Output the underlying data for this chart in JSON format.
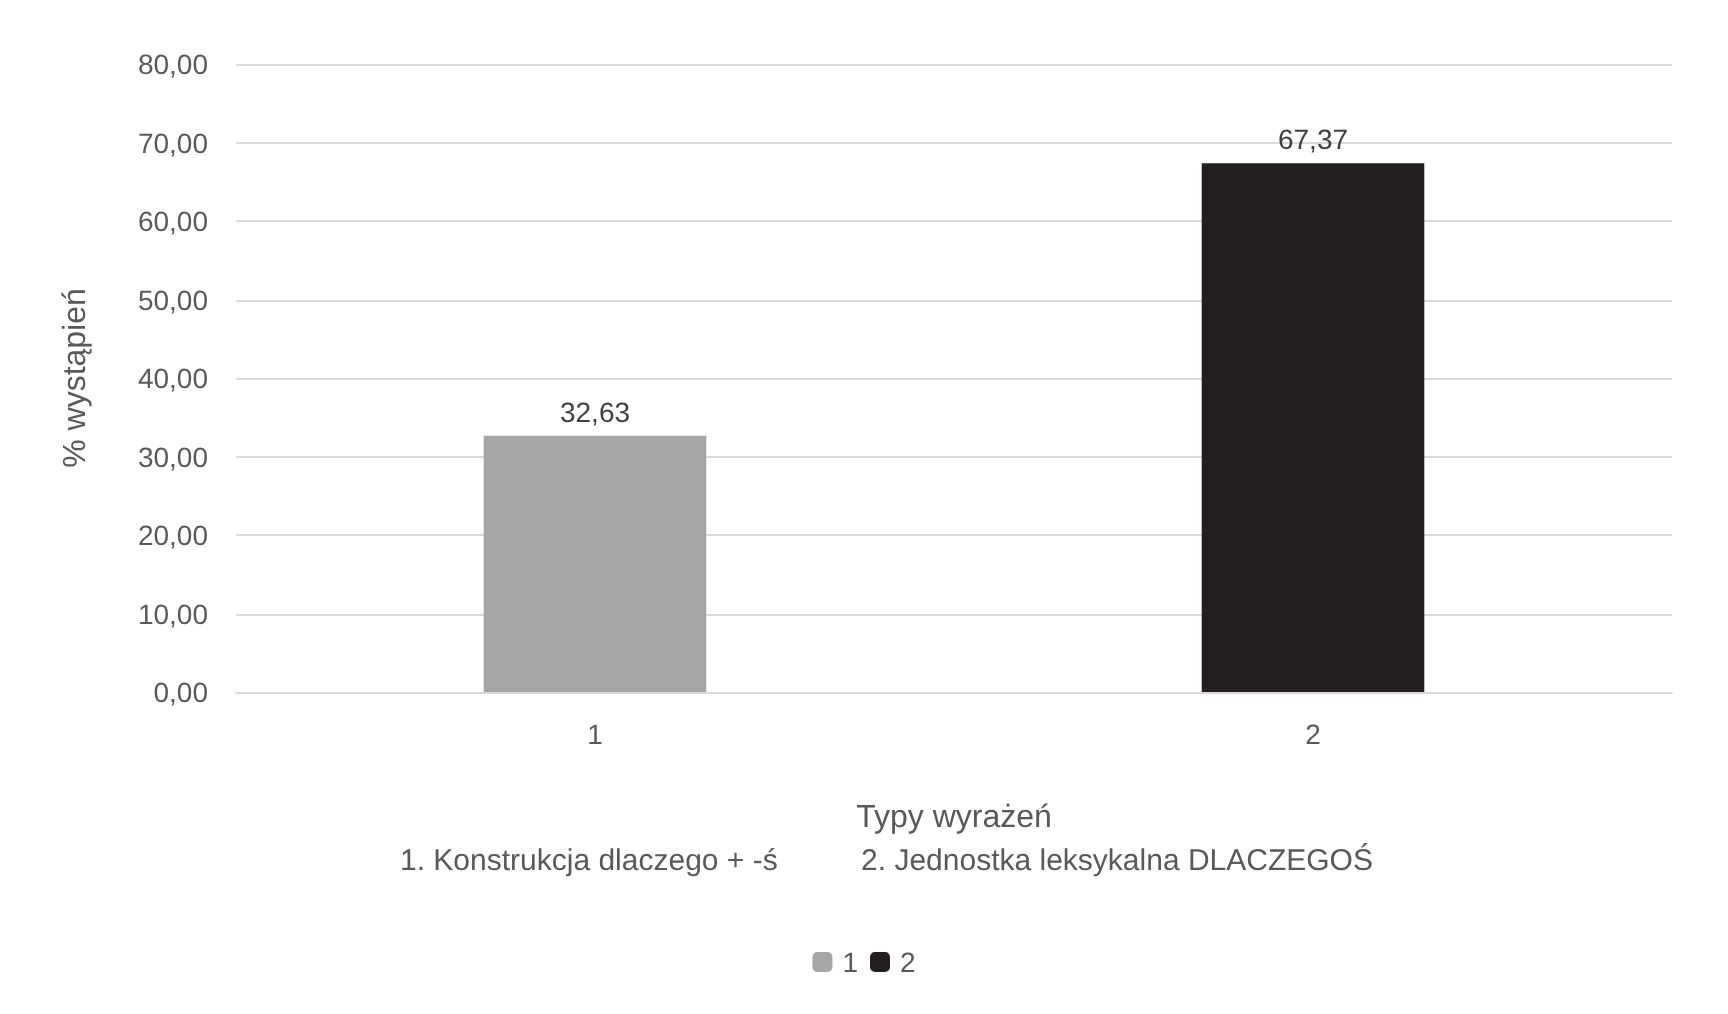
{
  "chart_data": {
    "type": "bar",
    "categories": [
      "1",
      "2"
    ],
    "series": [
      {
        "name": "1",
        "color": "#a5a5a5",
        "values": [
          32.63,
          null
        ],
        "value_labels": [
          "32,63",
          null
        ]
      },
      {
        "name": "2",
        "color": "#231f20",
        "values": [
          null,
          67.37
        ],
        "value_labels": [
          null,
          "67,37"
        ]
      }
    ],
    "xlabel": "Typy wyrażeń",
    "ylabel": "% wystąpień",
    "annotations": [
      "1. Konstrukcja dlaczego + -ś          2. Jednostka leksykalna DLACZEGOŚ"
    ],
    "ylim": [
      0,
      80
    ],
    "yticks": [
      {
        "value": 0,
        "label": "0,00"
      },
      {
        "value": 10,
        "label": "10,00"
      },
      {
        "value": 20,
        "label": "20,00"
      },
      {
        "value": 30,
        "label": "30,00"
      },
      {
        "value": 40,
        "label": "40,00"
      },
      {
        "value": 50,
        "label": "50,00"
      },
      {
        "value": 60,
        "label": "60,00"
      },
      {
        "value": 70,
        "label": "70,00"
      },
      {
        "value": 80,
        "label": "80,00"
      }
    ],
    "grid": "y",
    "legend": "bottom"
  }
}
